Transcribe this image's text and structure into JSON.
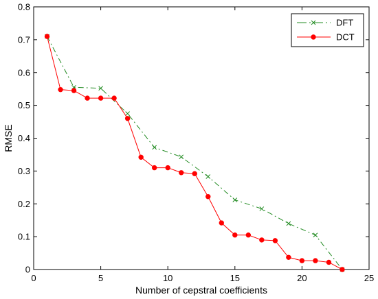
{
  "chart_data": {
    "type": "line",
    "title": "",
    "xlabel": "Number of cepstral coefficients",
    "ylabel": "RMSE",
    "xlim": [
      0,
      25
    ],
    "ylim": [
      0,
      0.8
    ],
    "xticks": [
      0,
      5,
      10,
      15,
      20,
      25
    ],
    "xtick_labels": [
      "0",
      "5",
      "10",
      "15",
      "20",
      "25"
    ],
    "yticks": [
      0,
      0.1,
      0.2,
      0.3,
      0.4,
      0.5,
      0.6,
      0.7,
      0.8
    ],
    "ytick_labels": [
      "0",
      "0.1",
      "0.2",
      "0.3",
      "0.4",
      "0.5",
      "0.6",
      "0.7",
      "0.8"
    ],
    "grid": false,
    "legend_position": "top-right",
    "series": [
      {
        "name": "DFT",
        "color": "#228B22",
        "line_style": "dashdot",
        "marker": "x",
        "x": [
          1,
          3,
          5,
          7,
          9,
          11,
          13,
          15,
          17,
          19,
          21,
          23
        ],
        "y": [
          0.71,
          0.555,
          0.552,
          0.475,
          0.372,
          0.343,
          0.283,
          0.212,
          0.185,
          0.14,
          0.105,
          0.0
        ]
      },
      {
        "name": "DCT",
        "color": "#FF0000",
        "line_style": "solid",
        "marker": "o",
        "x": [
          1,
          2,
          3,
          4,
          5,
          6,
          7,
          8,
          9,
          10,
          11,
          12,
          13,
          14,
          15,
          16,
          17,
          18,
          19,
          20,
          21,
          22,
          23
        ],
        "y": [
          0.71,
          0.548,
          0.545,
          0.522,
          0.522,
          0.522,
          0.46,
          0.342,
          0.31,
          0.31,
          0.295,
          0.292,
          0.222,
          0.142,
          0.105,
          0.105,
          0.09,
          0.088,
          0.037,
          0.027,
          0.027,
          0.022,
          0.0
        ]
      }
    ]
  }
}
